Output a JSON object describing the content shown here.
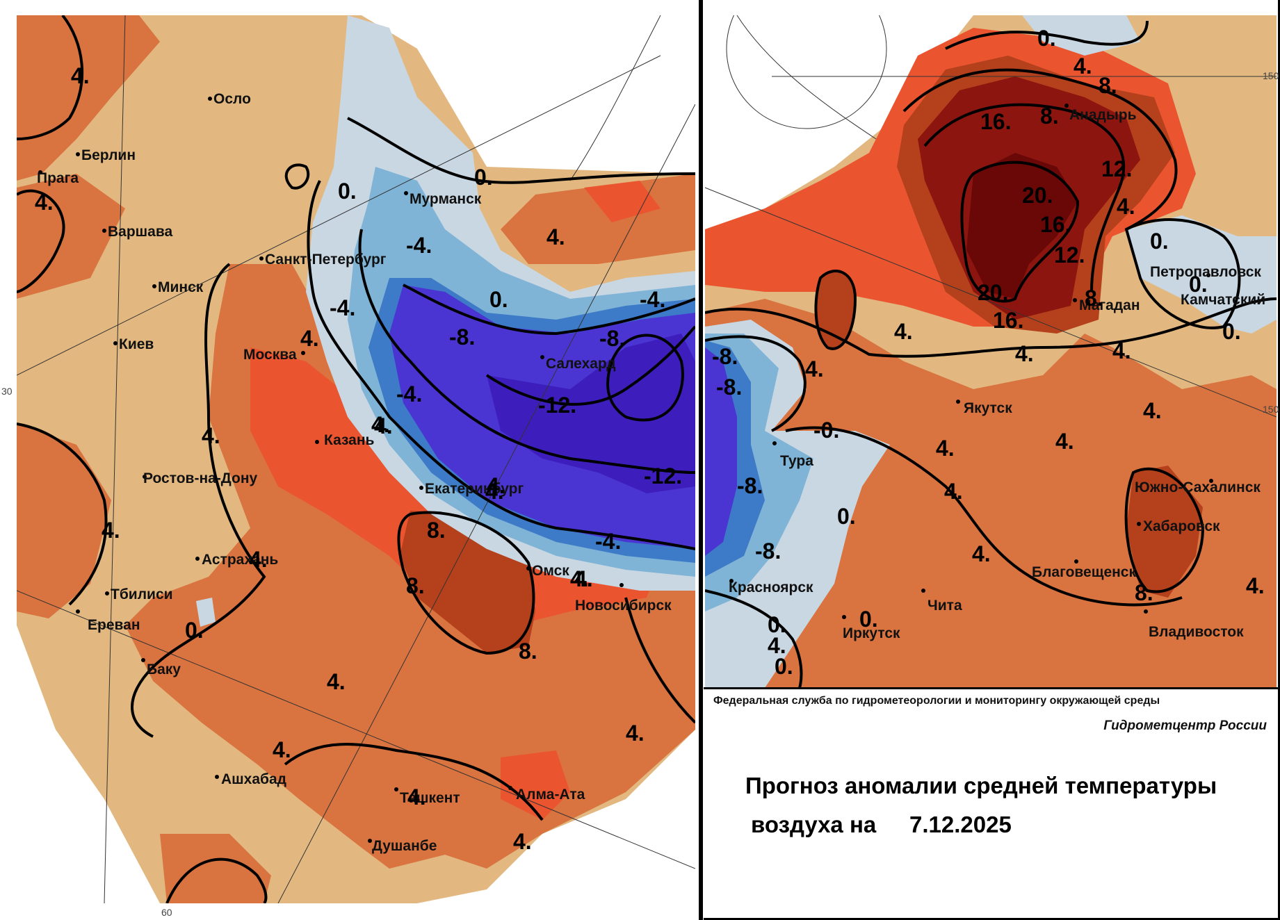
{
  "colors": {
    "anom_0_4": "#e2b880",
    "anom_4_8": "#d9733f",
    "anom_8_12": "#ea5530",
    "anom_12_16": "#b4401c",
    "anom_16_20": "#8c150f",
    "anom_20p": "#6a0808",
    "anom_m0_4": "#c9d7e3",
    "anom_m4_6": "#7fb4d6",
    "anom_m6_8": "#3d7ac7",
    "anom_m8_12": "#4a35d2",
    "anom_m12": "#3d1ebd",
    "isoline": "#000000",
    "frame": "#000000"
  },
  "left_panel": {
    "cities": [
      "Осло",
      "Берлин",
      "Прага",
      "Варшава",
      "Минск",
      "Киев",
      "Москва",
      "Санкт-Петербург",
      "Мурманск",
      "Салехард",
      "Казань",
      "Ростов-на-Дону",
      "Астрахань",
      "Тбилиси",
      "Ереван",
      "Баку",
      "Екатеринбург",
      "Омск",
      "Новосибирск",
      "Ашхабад",
      "Ташкент",
      "Алма-Ата",
      "Душанбе"
    ],
    "isolines": [
      "4.",
      "4.",
      "0.",
      "0.",
      "-4.",
      "4.",
      "-4.",
      "0.",
      "-4.",
      "-8.",
      "-8.",
      "-12.",
      "-4.",
      "4.",
      "4.",
      "-12.",
      "-4.",
      "4.",
      "8.",
      "8.",
      "8.",
      "4.",
      "4.",
      "0.",
      "4.",
      "4.",
      "4.",
      "4.",
      "4.",
      "4.",
      "4.",
      "4.",
      "4.",
      "4."
    ],
    "coords": [
      "30",
      "60"
    ]
  },
  "right_panel": {
    "cities": [
      "Анадырь",
      "Петропавловск",
      "Камчатский",
      "Магадан",
      "Якутск",
      "Тура",
      "Красноярск",
      "Иркутск",
      "Чита",
      "Благовещенск",
      "Хабаровск",
      "Южно-Сахалинск",
      "Владивосток"
    ],
    "isolines": [
      "0.",
      "4.",
      "8.",
      "8.",
      "16.",
      "12.",
      "20.",
      "4.",
      "16.",
      "12.",
      "0.",
      "20.",
      "8.",
      "16.",
      "0.",
      "0.",
      "4.",
      "4.",
      "4.",
      "4.",
      "-8.",
      "-8.",
      "-0.",
      "4.",
      "4.",
      "4.",
      "4.",
      "-8.",
      "0.",
      "-8.",
      "4.",
      "8.",
      "4.",
      "0.",
      "0.",
      "0.",
      "4."
    ],
    "coords": [
      "150",
      "150"
    ]
  },
  "legend": {
    "org": "Федеральная служба по гидрометеорологии и мониторингу окружающей среды",
    "center": "Гидрометцентр России",
    "title_line1": "Прогноз аномалии средней температуры",
    "title_line2": "воздуха на",
    "date": "7.12.2025"
  }
}
